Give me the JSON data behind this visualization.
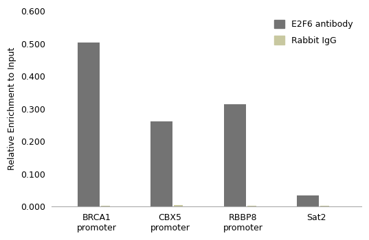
{
  "categories": [
    "BRCA1\npromoter",
    "CBX5\npromoter",
    "RBBP8\npromoter",
    "Sat2"
  ],
  "e2f6_values": [
    0.503,
    0.261,
    0.315,
    0.033
  ],
  "igg_values": [
    0.002,
    0.005,
    0.003,
    0.002
  ],
  "e2f6_color": "#737373",
  "igg_color": "#c8c8a0",
  "ylabel": "Relative Enrichment to Input",
  "ylim": [
    0.0,
    0.6
  ],
  "yticks": [
    0.0,
    0.1,
    0.2,
    0.3,
    0.4,
    0.5,
    0.6
  ],
  "legend_e2f6": "E2F6 antibody",
  "legend_igg": "Rabbit IgG",
  "bar_width": 0.3,
  "igg_bar_width": 0.12,
  "background_color": "#ffffff",
  "tick_fontsize": 9,
  "label_fontsize": 9,
  "legend_fontsize": 9
}
